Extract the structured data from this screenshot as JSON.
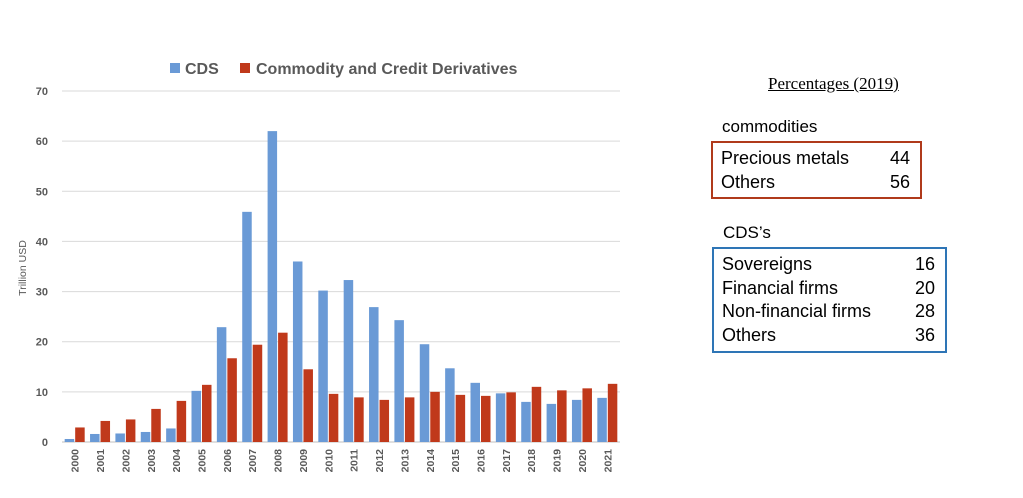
{
  "colors": {
    "cds": "#6a9ad6",
    "commodity": "#c0391b",
    "grid": "#d9d9d9",
    "axis": "#bfbfbf"
  },
  "chart_data": {
    "type": "bar",
    "title": "",
    "xlabel": "",
    "ylabel": "Trillion USD",
    "ylim": [
      0,
      70
    ],
    "yticks": [
      0,
      10,
      20,
      30,
      40,
      50,
      60,
      70
    ],
    "legend": "top",
    "categories": [
      "2000",
      "2001",
      "2002",
      "2003",
      "2004",
      "2005",
      "2006",
      "2007",
      "2008",
      "2009",
      "2010",
      "2011",
      "2012",
      "2013",
      "2014",
      "2015",
      "2016",
      "2017",
      "2018",
      "2019",
      "2020",
      "2021"
    ],
    "series": [
      {
        "name": "CDS",
        "values": [
          0.6,
          1.6,
          1.7,
          2.0,
          2.7,
          10.2,
          22.9,
          45.9,
          62.0,
          36.0,
          30.2,
          32.3,
          26.9,
          24.3,
          19.5,
          14.7,
          11.8,
          9.7,
          8.0,
          7.6,
          8.4,
          8.8
        ]
      },
      {
        "name": "Commodity and Credit Derivatives",
        "values": [
          2.9,
          4.2,
          4.5,
          6.6,
          8.2,
          11.4,
          16.7,
          19.4,
          21.8,
          14.5,
          9.6,
          8.9,
          8.4,
          8.9,
          10.0,
          9.4,
          9.2,
          9.9,
          11.0,
          10.3,
          10.7,
          11.6
        ]
      }
    ]
  },
  "side": {
    "title": "Percentages (2019)",
    "commodities": {
      "label": "commodities",
      "rows": [
        {
          "name": "Precious metals",
          "value": "44"
        },
        {
          "name": "Others",
          "value": "56"
        }
      ]
    },
    "cds": {
      "label": "CDS’s",
      "rows": [
        {
          "name": "Sovereigns",
          "value": "16"
        },
        {
          "name": "Financial firms",
          "value": "20"
        },
        {
          "name": "Non-financial firms",
          "value": "28"
        },
        {
          "name": "Others",
          "value": "36"
        }
      ]
    }
  }
}
